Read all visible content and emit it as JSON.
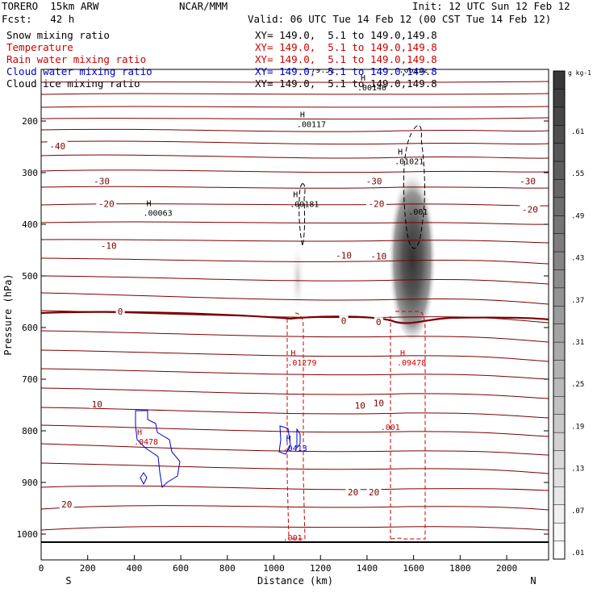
{
  "header": {
    "model": "TORERO  15km ARW",
    "org": "NCAR/MMM",
    "init": "Init: 12 UTC Sun 12 Feb 12",
    "fcst": "Fcst:   42 h",
    "valid": "Valid: 06 UTC Tue 14 Feb 12 (00 CST Tue 14 Feb 12)"
  },
  "legend": [
    {
      "label": "Snow mixing ratio",
      "xy": "XY= 149.0,  5.1 to 149.0,149.8",
      "color": "#000000"
    },
    {
      "label": "Temperature",
      "xy": "XY= 149.0,  5.1 to 149.0,149.8",
      "color": "#cc0000"
    },
    {
      "label": "Rain water mixing ratio",
      "xy": "XY= 149.0,  5.1 to 149.0,149.8",
      "color": "#cc0000"
    },
    {
      "label": "Cloud water mixing ratio",
      "xy": "XY= 149.0,  5.1 to 149.0,149.8",
      "color": "#0000cc"
    },
    {
      "label": "Cloud ice mixing ratio",
      "xy": "XY= 149.0,  5.1 to 149.0,149.8",
      "color": "#000000"
    }
  ],
  "chart_data": {
    "type": "contour",
    "xlabel": "Distance (km)",
    "ylabel": "Pressure (hPa)",
    "xlim": [
      0,
      2180
    ],
    "ylim": [
      1050,
      100
    ],
    "x_ticks": [
      0,
      200,
      400,
      600,
      800,
      1000,
      1200,
      1400,
      1600,
      1800,
      2000
    ],
    "y_ticks": [
      200,
      300,
      400,
      500,
      600,
      700,
      800,
      900,
      1000
    ],
    "left_end_label": "S",
    "right_end_label": "N",
    "colorbar": {
      "unit": "g kg-1",
      "ticks": [
        ".01",
        ".07",
        ".13",
        ".19",
        ".25",
        ".31",
        ".37",
        ".43",
        ".49",
        ".55",
        ".61"
      ]
    },
    "temperature_labels": [
      {
        "text": "-40",
        "x": 70,
        "p": 250
      },
      {
        "text": "-30",
        "x": 260,
        "p": 318
      },
      {
        "text": "-30",
        "x": 1430,
        "p": 318
      },
      {
        "text": "-30",
        "x": 2090,
        "p": 318
      },
      {
        "text": "-20",
        "x": 280,
        "p": 362
      },
      {
        "text": "-20",
        "x": 1440,
        "p": 362
      },
      {
        "text": "-20",
        "x": 2100,
        "p": 373
      },
      {
        "text": "-10",
        "x": 290,
        "p": 443
      },
      {
        "text": "-10",
        "x": 1300,
        "p": 462
      },
      {
        "text": "-10",
        "x": 1450,
        "p": 463
      },
      {
        "text": "0",
        "x": 340,
        "p": 570
      },
      {
        "text": "0",
        "x": 1300,
        "p": 588
      },
      {
        "text": "0",
        "x": 1450,
        "p": 591
      },
      {
        "text": "10",
        "x": 240,
        "p": 750
      },
      {
        "text": "10",
        "x": 1370,
        "p": 752
      },
      {
        "text": "10",
        "x": 1450,
        "p": 748
      },
      {
        "text": "20",
        "x": 110,
        "p": 944
      },
      {
        "text": "20",
        "x": 1340,
        "p": 920
      },
      {
        "text": "20",
        "x": 1430,
        "p": 920
      }
    ],
    "maxima": [
      {
        "h": "H",
        "value": ".00063",
        "x": 480,
        "p": 365,
        "color": "#000000"
      },
      {
        "h": "H",
        "value": ".00117",
        "x": 1140,
        "p": 193,
        "color": "#000000"
      },
      {
        "h": "H",
        "value": ".00140",
        "x": 1400,
        "p": 122,
        "color": "#000000"
      },
      {
        "h": "H",
        "value": ".00181",
        "x": 1110,
        "p": 348,
        "color": "#000000"
      },
      {
        "h": "H",
        "value": ".01021",
        "x": 1560,
        "p": 265,
        "color": "#000000"
      },
      {
        "h": "H",
        "value": ".01279",
        "x": 1100,
        "p": 655,
        "color": "#cc0000"
      },
      {
        "h": "H",
        "value": ".09478",
        "x": 1570,
        "p": 655,
        "color": "#cc0000"
      },
      {
        "h": "H",
        "value": ".0478",
        "x": 440,
        "p": 808,
        "color": "#cc0000"
      },
      {
        "h": "H",
        "value": ".0413",
        "x": 1080,
        "p": 820,
        "color": "#0000cc"
      }
    ],
    "other_labels": [
      {
        "text": ".001",
        "x": 1620,
        "p": 375,
        "color": "#000000"
      },
      {
        "text": ".001",
        "x": 1500,
        "p": 792,
        "color": "#cc0000"
      },
      {
        "text": ".001",
        "x": 1080,
        "p": 1006,
        "color": "#cc0000"
      },
      {
        "text": ".79.52",
        "x": 1200,
        "p": 100,
        "color": "#000000"
      },
      {
        "text": ".00152",
        "x": 1600,
        "p": 100,
        "color": "#000000"
      }
    ]
  }
}
